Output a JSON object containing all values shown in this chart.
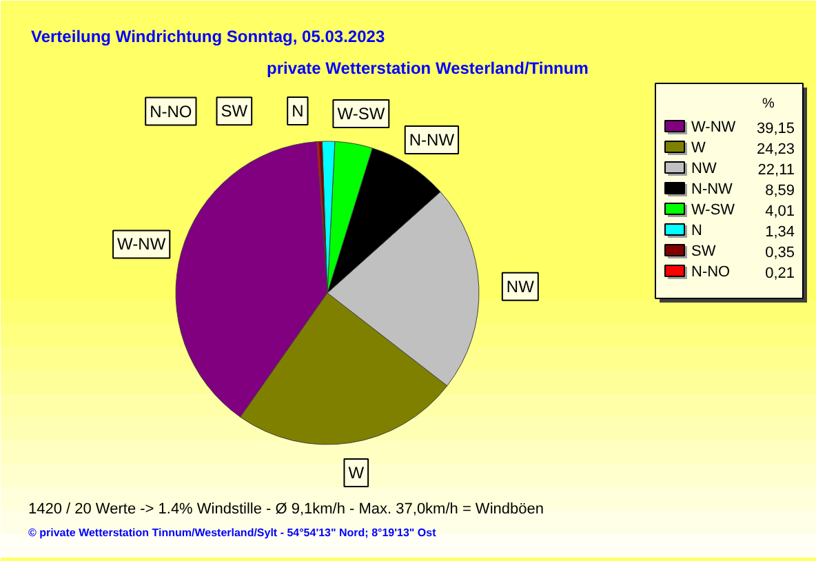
{
  "chart_data": {
    "type": "pie",
    "title": "Verteilung Windrichtung   Sonntag, 05.03.2023",
    "subtitle": "private Wetterstation Westerland/Tinnum",
    "legend_title": "%",
    "categories": [
      "W-NW",
      "W",
      "NW",
      "N-NW",
      "W-SW",
      "N",
      "SW",
      "N-NO"
    ],
    "values": [
      39.15,
      24.23,
      22.11,
      8.59,
      4.01,
      1.34,
      0.35,
      0.21
    ],
    "colors": [
      "#800080",
      "#808000",
      "#c0c0c0",
      "#000000",
      "#00ff00",
      "#00ffff",
      "#800000",
      "#ff0000"
    ],
    "value_labels": [
      "39,15",
      "24,23",
      "22,11",
      "8,59",
      "4,01",
      "1,34",
      "0,35",
      "0,21"
    ],
    "legend": "right",
    "annotations": [
      "1420 / 20 Werte  -> 1.4% Windstille   -   Ø 9,1km/h  -  Max. 37,0km/h = Windböen",
      "© private Wetterstation Tinnum/Westerland/Sylt   -   54°54'13\" Nord; 8°19'13\" Ost"
    ]
  }
}
